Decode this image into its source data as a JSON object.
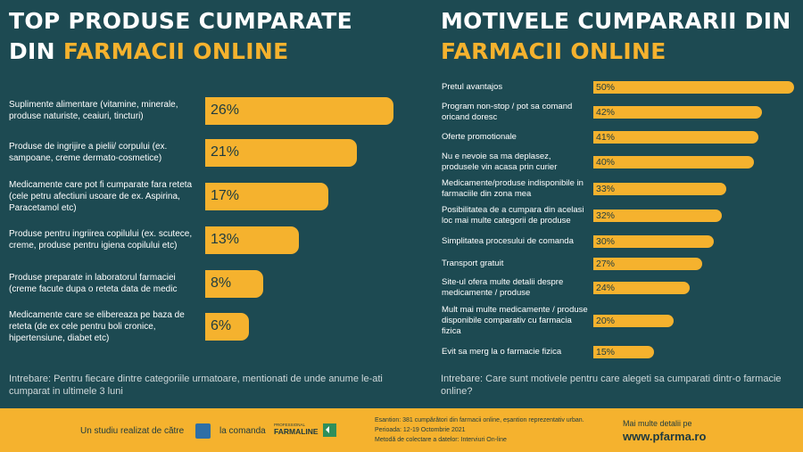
{
  "left": {
    "title_line1": "TOP PRODUSE CUMPARATE",
    "title_line2_prefix": "DIN ",
    "title_line2_accent": "FARMACII ONLINE",
    "question": "Intrebare: Pentru fiecare dintre categoriile urmatoare, mentionati de unde anume le-ati cumparat in ultimele 3 luni"
  },
  "right": {
    "title_line1": "MOTIVELE CUMPARARII DIN",
    "title_line2_accent": "FARMACII ONLINE",
    "question": "Intrebare: Care sunt motivele pentru care alegeti sa cumparati dintr-o farmacie online?"
  },
  "chart_data": [
    {
      "type": "bar",
      "orientation": "horizontal",
      "title": "TOP PRODUSE CUMPARATE DIN FARMACII ONLINE",
      "categories": [
        "Suplimente alimentare (vitamine, minerale, produse naturiste, ceaiuri, tincturi)",
        "Produse de ingrijire a pielii/ corpului (ex. sampoane, creme dermato-cosmetice)",
        "Medicamente care pot fi cumparate fara reteta (cele petru afectiuni usoare de ex. Aspirina, Paracetamol etc)",
        "Produse pentru ingriirea copilului (ex. scutece, creme, produse pentru igiena copilului etc)",
        "Produse preparate in laboratorul farmaciei (creme facute dupa o reteta data de medic",
        "Medicamente care se elibereaza pe baza de reteta (de ex cele pentru boli cronice, hipertensiune, diabet etc)"
      ],
      "values": [
        26,
        21,
        17,
        13,
        8,
        6
      ],
      "value_labels": [
        "26%",
        "21%",
        "17%",
        "13%",
        "8%",
        "6%"
      ],
      "unit": "%",
      "color": "#f5b22e"
    },
    {
      "type": "bar",
      "orientation": "horizontal",
      "title": "MOTIVELE CUMPARARII DIN FARMACII ONLINE",
      "categories": [
        "Pretul avantajos",
        "Program non-stop / pot sa comand oricand doresc",
        "Oferte promotionale",
        "Nu e nevoie sa ma deplasez, produsele vin acasa prin curier",
        "Medicamente/produse indisponibile in farmaciile din zona mea",
        "Posibilitatea de a cumpara din acelasi loc mai multe categorii de produse",
        "Simplitatea procesului de comanda",
        "Transport gratuit",
        "Site-ul ofera multe detalii despre medicamente / produse",
        "Mult mai multe medicamente / produse disponibile comparativ cu farmacia fizica",
        "Evit sa merg la o farmacie fizica"
      ],
      "values": [
        50,
        42,
        41,
        40,
        33,
        32,
        30,
        27,
        24,
        20,
        15
      ],
      "value_labels": [
        "50%",
        "42%",
        "41%",
        "40%",
        "33%",
        "32%",
        "30%",
        "27%",
        "24%",
        "20%",
        "15%"
      ],
      "unit": "%",
      "color": "#f5b22e"
    }
  ],
  "footer": {
    "study_text": "Un studiu realizat de către",
    "commission_text": "la comanda",
    "farmaline_brand": "FARMALINE",
    "farmaline_top": "PROFESSIONAL",
    "info_line1": "Esantion: 381 cumpărători din farmacii online, eșantion reprezentativ urban.",
    "info_line2": "Perioada: 12-19 Octombrie 2021",
    "info_line3": "Metodă de colectare a datelor: Interviuri On-line",
    "more_text": "Mai multe detalii pe",
    "website": "www.pfarma.ro"
  },
  "colors": {
    "background": "#1d4a52",
    "accent": "#f5b22e",
    "bar_text": "#1d3b40"
  }
}
